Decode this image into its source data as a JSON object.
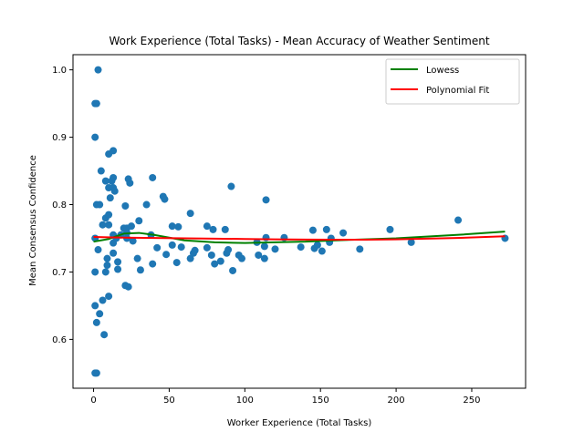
{
  "chart_data": {
    "type": "scatter",
    "title": "Work Experience (Total Tasks) - Mean Accuracy of Weather Sentiment",
    "xlabel": "Worker Experience (Total Tasks)",
    "ylabel": "Mean Consensus Confidence",
    "xlim": [
      -13.6,
      285.6
    ],
    "ylim": [
      0.5275,
      1.0225
    ],
    "xticks": [
      0,
      50,
      100,
      150,
      200,
      250
    ],
    "xtick_labels": [
      "0",
      "50",
      "100",
      "150",
      "200",
      "250"
    ],
    "yticks": [
      0.6,
      0.7,
      0.8,
      0.9,
      1.0
    ],
    "ytick_labels": [
      "0.6",
      "0.7",
      "0.8",
      "0.9",
      "1.0"
    ],
    "grid": false,
    "legend_position": "upper right",
    "scatter_color": "#1f77b4",
    "points": [
      [
        1,
        0.95
      ],
      [
        2,
        0.95
      ],
      [
        3,
        1.0
      ],
      [
        1,
        0.9
      ],
      [
        2,
        0.8
      ],
      [
        4,
        0.8
      ],
      [
        5,
        0.85
      ],
      [
        1,
        0.75
      ],
      [
        3,
        0.733
      ],
      [
        6,
        0.77
      ],
      [
        1,
        0.7
      ],
      [
        1,
        0.65
      ],
      [
        2,
        0.625
      ],
      [
        4,
        0.638
      ],
      [
        1,
        0.55
      ],
      [
        2,
        0.55
      ],
      [
        6,
        0.658
      ],
      [
        7,
        0.607
      ],
      [
        8,
        0.835
      ],
      [
        8,
        0.78
      ],
      [
        8,
        0.7
      ],
      [
        9,
        0.72
      ],
      [
        9,
        0.71
      ],
      [
        10,
        0.875
      ],
      [
        10,
        0.825
      ],
      [
        10,
        0.785
      ],
      [
        10,
        0.77
      ],
      [
        10,
        0.664
      ],
      [
        11,
        0.81
      ],
      [
        12,
        0.835
      ],
      [
        13,
        0.88
      ],
      [
        13,
        0.84
      ],
      [
        13,
        0.825
      ],
      [
        13,
        0.755
      ],
      [
        13,
        0.743
      ],
      [
        13,
        0.728
      ],
      [
        14,
        0.82
      ],
      [
        15,
        0.75
      ],
      [
        16,
        0.704
      ],
      [
        16,
        0.715
      ],
      [
        18,
        0.755
      ],
      [
        20,
        0.765
      ],
      [
        21,
        0.798
      ],
      [
        21,
        0.68
      ],
      [
        22,
        0.765
      ],
      [
        22,
        0.75
      ],
      [
        22,
        0.758
      ],
      [
        23,
        0.678
      ],
      [
        23,
        0.838
      ],
      [
        24,
        0.832
      ],
      [
        25,
        0.768
      ],
      [
        26,
        0.746
      ],
      [
        29,
        0.72
      ],
      [
        30,
        0.776
      ],
      [
        31,
        0.703
      ],
      [
        35,
        0.8
      ],
      [
        38,
        0.755
      ],
      [
        39,
        0.84
      ],
      [
        39,
        0.712
      ],
      [
        42,
        0.736
      ],
      [
        46,
        0.812
      ],
      [
        47,
        0.808
      ],
      [
        48,
        0.726
      ],
      [
        52,
        0.768
      ],
      [
        52,
        0.74
      ],
      [
        55,
        0.714
      ],
      [
        56,
        0.767
      ],
      [
        58,
        0.737
      ],
      [
        64,
        0.787
      ],
      [
        64,
        0.72
      ],
      [
        66,
        0.728
      ],
      [
        67,
        0.732
      ],
      [
        75,
        0.768
      ],
      [
        75,
        0.736
      ],
      [
        78,
        0.725
      ],
      [
        79,
        0.763
      ],
      [
        80,
        0.712
      ],
      [
        84,
        0.716
      ],
      [
        87,
        0.763
      ],
      [
        88,
        0.728
      ],
      [
        89,
        0.733
      ],
      [
        91,
        0.827
      ],
      [
        92,
        0.702
      ],
      [
        96,
        0.725
      ],
      [
        98,
        0.72
      ],
      [
        108,
        0.744
      ],
      [
        109,
        0.725
      ],
      [
        113,
        0.72
      ],
      [
        113,
        0.738
      ],
      [
        114,
        0.751
      ],
      [
        114,
        0.807
      ],
      [
        120,
        0.734
      ],
      [
        126,
        0.751
      ],
      [
        137,
        0.737
      ],
      [
        145,
        0.762
      ],
      [
        146,
        0.735
      ],
      [
        148,
        0.74
      ],
      [
        151,
        0.731
      ],
      [
        154,
        0.763
      ],
      [
        156,
        0.744
      ],
      [
        157,
        0.75
      ],
      [
        165,
        0.758
      ],
      [
        176,
        0.734
      ],
      [
        196,
        0.763
      ],
      [
        210,
        0.744
      ],
      [
        241,
        0.777
      ],
      [
        272,
        0.75
      ]
    ],
    "series": [
      {
        "name": "Lowess",
        "color": "#008000",
        "x": [
          0,
          10,
          20,
          30,
          40,
          60,
          80,
          100,
          120,
          140,
          160,
          200,
          240,
          272
        ],
        "y": [
          0.745,
          0.749,
          0.757,
          0.758,
          0.755,
          0.747,
          0.744,
          0.743,
          0.744,
          0.745,
          0.747,
          0.75,
          0.755,
          0.76
        ]
      },
      {
        "name": "Polynomial Fit",
        "color": "#ff0000",
        "x": [
          0,
          20,
          40,
          60,
          80,
          100,
          120,
          140,
          160,
          180,
          200,
          220,
          240,
          272
        ],
        "y": [
          0.752,
          0.751,
          0.7505,
          0.75,
          0.7495,
          0.749,
          0.7485,
          0.7482,
          0.748,
          0.748,
          0.7485,
          0.7495,
          0.7505,
          0.753
        ]
      }
    ]
  }
}
